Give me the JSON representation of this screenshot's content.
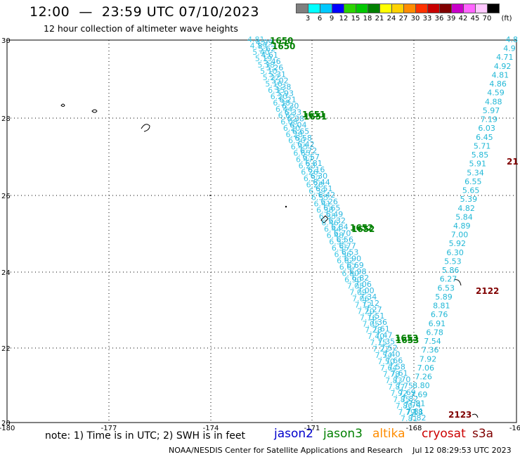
{
  "header": {
    "title": "12:00  —  23:59 UTC 07/10/2023",
    "subtitle": "12 hour collection of altimeter wave heights"
  },
  "colorbar": {
    "colors": [
      "#7f7f7f",
      "#00ffff",
      "#00c8ff",
      "#0000ff",
      "#2bd400",
      "#00c800",
      "#008000",
      "#ffff00",
      "#ffd200",
      "#ff8c00",
      "#ff3200",
      "#c80000",
      "#800000",
      "#c800c8",
      "#ff64ff",
      "#ffc8ff",
      "#000000"
    ],
    "labels": [
      "3",
      "6",
      "9",
      "12",
      "15",
      "18",
      "21",
      "24",
      "27",
      "30",
      "33",
      "36",
      "39",
      "42",
      "45",
      "70"
    ],
    "unit": "(ft)"
  },
  "map": {
    "lon_ticks": [
      "-180",
      "-177",
      "-174",
      "-171",
      "-168",
      "-16"
    ],
    "lat_ticks": [
      "30",
      "28",
      "26",
      "24",
      "22",
      "20"
    ],
    "track_times": [
      {
        "label": "1650",
        "color": "#008000"
      },
      {
        "label": "1650",
        "color": "#008000"
      },
      {
        "label": "1651",
        "color": "#008000"
      },
      {
        "label": "1651",
        "color": "#008000"
      },
      {
        "label": "1652",
        "color": "#008000"
      },
      {
        "label": "1652",
        "color": "#008000"
      },
      {
        "label": "1653",
        "color": "#008000"
      },
      {
        "label": "1653",
        "color": "#008000"
      },
      {
        "label": "2122",
        "color": "#800000"
      },
      {
        "label": "2123",
        "color": "#800000"
      },
      {
        "label": "21",
        "color": "#800000"
      }
    ],
    "track_a_values": [
      "4.81",
      "4.89",
      "5.40",
      "5.19",
      "5.38",
      "5.10",
      "5.22",
      "5.16",
      "6.35",
      "6.20",
      "6.38",
      "6.44",
      "6.65",
      "6.08",
      "6.20",
      "6.28",
      "6.30",
      "6.45",
      "6.65",
      "6.47",
      "6.23",
      "6.26",
      "6.32",
      "6.28",
      "6.39",
      "6.55",
      "6.41",
      "6.38",
      "6.35",
      "6.46",
      "6.44",
      "6.48",
      "6.52",
      "6.55",
      "6.56",
      "6.62",
      "6.67",
      "6.80",
      "6.90",
      "7.05",
      "7.09",
      "7.06",
      "7.12",
      "7.20",
      "7.16",
      "7.05",
      "7.28",
      "7.40",
      "7.15",
      "7.22",
      "7.54",
      "7.50",
      "7.64",
      "7.78",
      "7.83",
      "7.87",
      "7.92",
      "7.85",
      "7.80",
      "7.79",
      "7.81"
    ],
    "track_b_values": [
      "4.99",
      "5.62",
      "4.61",
      "5.46",
      "5.26",
      "5.31",
      "5.02",
      "5.38",
      "5.93",
      "6.21",
      "6.30",
      "6.33",
      "6.38",
      "6.04",
      "6.65",
      "6.58",
      "6.42",
      "6.72",
      "6.57",
      "6.81",
      "6.16",
      "6.30",
      "6.44",
      "6.51",
      "6.42",
      "6.26",
      "6.65",
      "6.49",
      "6.32",
      "6.84",
      "6.70",
      "6.56",
      "6.77",
      "6.53",
      "6.90",
      "6.69",
      "6.98",
      "6.82",
      "7.06",
      "7.00",
      "7.34",
      "7.12",
      "7.27",
      "7.51",
      "7.36",
      "7.61",
      "7.47",
      "7.35",
      "7.52",
      "7.40",
      "7.66",
      "7.58",
      "7.61",
      "7.70",
      "7.75",
      "7.69",
      "7.82",
      "7.74",
      "7.81",
      "7.82"
    ],
    "track_c_values": [
      "4.8",
      "4.9",
      "4.71",
      "4.92",
      "4.81",
      "4.86",
      "4.59",
      "4.88",
      "5.97",
      "7.19",
      "6.03",
      "6.45",
      "5.71",
      "5.85",
      "5.91",
      "5.34",
      "6.55",
      "5.65",
      "5.39",
      "4.82",
      "5.84",
      "4.89",
      "7.00",
      "5.92",
      "6.30",
      "5.53",
      "5.86",
      "6.27",
      "6.53",
      "5.89",
      "8.81",
      "6.76",
      "6.91",
      "6.78",
      "7.54",
      "7.36",
      "7.92",
      "7.06",
      "7.26",
      "8.80",
      "7.69",
      "7.81",
      "7.18"
    ]
  },
  "footer": {
    "note": "note:  1) Time is in UTC;  2) SWH is in feet",
    "missions": [
      {
        "label": "jason2",
        "color": "#0000cc"
      },
      {
        "label": "jason3",
        "color": "#008000"
      },
      {
        "label": "altika",
        "color": "#ff8c00"
      },
      {
        "label": "cryosat",
        "color": "#cc0000"
      },
      {
        "label": "s3a",
        "color": "#800000"
      }
    ],
    "credit": "NOAA/NESDIS Center for Satellite Applications and Research    Jul 12 08:29:53 UTC 2023"
  }
}
